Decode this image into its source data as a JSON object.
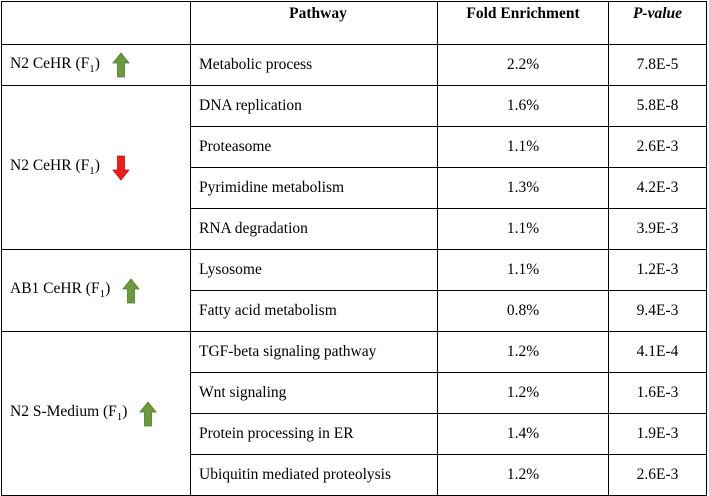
{
  "header": {
    "group": "",
    "pathway": "Pathway",
    "fold": "Fold Enrichment",
    "pvalue": "P-value"
  },
  "arrow_colors": {
    "up": "#6a9a3c",
    "down": "#ee1c1c"
  },
  "groups": [
    {
      "label_main": "N2 CeHR (F",
      "label_sub": "1",
      "label_end": ")",
      "arrow": "arrow-up-icon",
      "rows": [
        {
          "pathway": "Metabolic process",
          "fold": "2.2%",
          "pvalue": "7.8E-5"
        }
      ]
    },
    {
      "label_main": "N2 CeHR (F",
      "label_sub": "1",
      "label_end": ")",
      "arrow": "arrow-down-icon",
      "rows": [
        {
          "pathway": "DNA replication",
          "fold": "1.6%",
          "pvalue": "5.8E-8"
        },
        {
          "pathway": "Proteasome",
          "fold": "1.1%",
          "pvalue": "2.6E-3"
        },
        {
          "pathway": "Pyrimidine metabolism",
          "fold": "1.3%",
          "pvalue": "4.2E-3"
        },
        {
          "pathway": "RNA degradation",
          "fold": "1.1%",
          "pvalue": "3.9E-3"
        }
      ]
    },
    {
      "label_main": "AB1 CeHR (F",
      "label_sub": "1",
      "label_end": ")",
      "arrow": "arrow-up-icon",
      "rows": [
        {
          "pathway": "Lysosome",
          "fold": "1.1%",
          "pvalue": "1.2E-3"
        },
        {
          "pathway": "Fatty acid metabolism",
          "fold": "0.8%",
          "pvalue": "9.4E-3"
        }
      ]
    },
    {
      "label_main": "N2 S-Medium (F",
      "label_sub": "1",
      "label_end": ")",
      "arrow": "arrow-up-icon",
      "rows": [
        {
          "pathway": "TGF-beta signaling pathway",
          "fold": "1.2%",
          "pvalue": "4.1E-4"
        },
        {
          "pathway": "Wnt signaling",
          "fold": "1.2%",
          "pvalue": "1.6E-3"
        },
        {
          "pathway": "Protein processing in ER",
          "fold": "1.4%",
          "pvalue": "1.9E-3"
        },
        {
          "pathway": "Ubiquitin mediated proteolysis",
          "fold": "1.2%",
          "pvalue": "2.6E-3"
        }
      ]
    }
  ]
}
